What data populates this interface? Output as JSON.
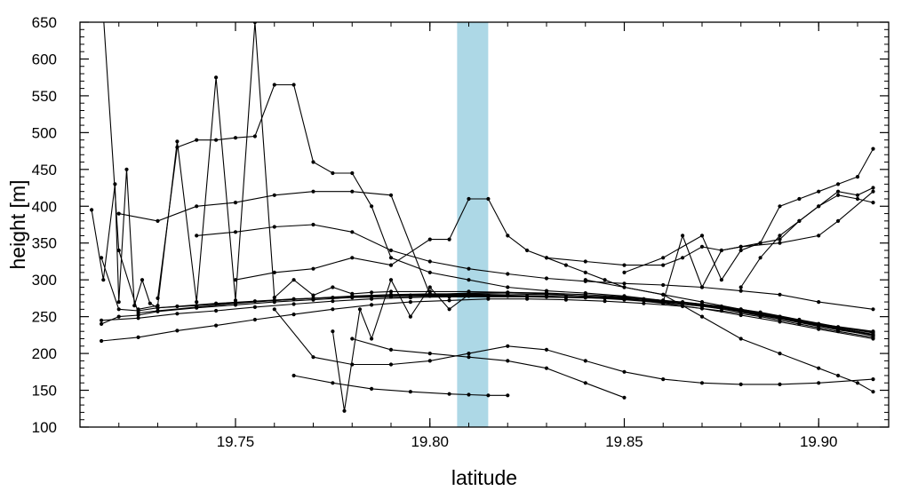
{
  "chart_data": {
    "type": "line",
    "title": "",
    "xlabel": "latitude",
    "ylabel": "height [m]",
    "xlim": [
      19.71,
      19.918
    ],
    "ylim": [
      100,
      650
    ],
    "x_ticks": [
      19.75,
      19.8,
      19.85,
      19.9
    ],
    "x_tick_labels": [
      "19.75",
      "19.80",
      "19.85",
      "19.90"
    ],
    "y_ticks": [
      100,
      150,
      200,
      250,
      300,
      350,
      400,
      450,
      500,
      550,
      600,
      650
    ],
    "y_tick_labels": [
      "100",
      "150",
      "200",
      "250",
      "300",
      "350",
      "400",
      "450",
      "500",
      "550",
      "600",
      "650"
    ],
    "grid": false,
    "legend": "none",
    "highlight_band": {
      "x_range": [
        19.807,
        19.815
      ],
      "color": "#add8e6"
    },
    "line_color": "#000000",
    "series": [
      {
        "x": [
          19.7155,
          19.725,
          19.735,
          19.745,
          19.755,
          19.765,
          19.775,
          19.785,
          19.795,
          19.805,
          19.815,
          19.825,
          19.835,
          19.845,
          19.855,
          19.865,
          19.875,
          19.885,
          19.895,
          19.905,
          19.914
        ],
        "y": [
          217,
          222,
          231,
          238,
          246,
          253,
          260,
          266,
          270,
          272,
          274,
          274,
          273,
          271,
          268,
          264,
          258,
          250,
          240,
          230,
          222
        ]
      },
      {
        "x": [
          19.7155,
          19.725,
          19.735,
          19.745,
          19.755,
          19.765,
          19.775,
          19.785,
          19.795,
          19.805,
          19.815,
          19.825,
          19.835,
          19.845,
          19.855,
          19.865,
          19.875,
          19.885,
          19.895,
          19.905,
          19.914
        ],
        "y": [
          245,
          248,
          254,
          258,
          263,
          267,
          271,
          274,
          276,
          277,
          277,
          277,
          276,
          275,
          272,
          268,
          262,
          253,
          243,
          232,
          225
        ]
      },
      {
        "x": [
          19.7155,
          19.72,
          19.725,
          19.73,
          19.735,
          19.745,
          19.755,
          19.765,
          19.775,
          19.785,
          19.795,
          19.805,
          19.815,
          19.825,
          19.835,
          19.845,
          19.855,
          19.865,
          19.875,
          19.885,
          19.895,
          19.905,
          19.914
        ],
        "y": [
          330,
          260,
          258,
          262,
          264,
          268,
          271,
          274,
          276,
          278,
          279,
          279,
          279,
          278,
          277,
          276,
          274,
          270,
          264,
          256,
          246,
          236,
          228
        ]
      },
      {
        "x": [
          19.7155,
          19.72,
          19.725,
          19.73,
          19.74,
          19.75,
          19.76,
          19.77,
          19.78,
          19.79,
          19.8,
          19.81,
          19.82,
          19.83,
          19.84,
          19.85,
          19.86,
          19.87,
          19.88,
          19.89,
          19.9,
          19.914
        ],
        "y": [
          240,
          250,
          252,
          257,
          262,
          266,
          270,
          273,
          276,
          277,
          278,
          278,
          278,
          277,
          276,
          274,
          271,
          266,
          259,
          250,
          240,
          226
        ]
      },
      {
        "x": [
          19.713,
          19.716,
          19.719,
          19.72,
          19.722,
          19.724,
          19.726,
          19.728,
          19.73,
          19.74,
          19.75,
          19.76,
          19.77,
          19.78,
          19.79,
          19.8,
          19.81,
          19.82,
          19.83,
          19.84,
          19.85,
          19.86,
          19.87,
          19.88,
          19.89,
          19.9,
          19.914
        ],
        "y": [
          395,
          300,
          430,
          270,
          450,
          265,
          300,
          268,
          262,
          265,
          269,
          272,
          275,
          278,
          280,
          281,
          281,
          281,
          280,
          278,
          276,
          272,
          267,
          260,
          250,
          240,
          229
        ]
      },
      {
        "x": [
          19.716,
          19.72,
          19.725,
          19.73,
          19.74,
          19.75,
          19.76,
          19.77,
          19.78,
          19.79,
          19.8,
          19.81,
          19.82,
          19.83,
          19.84,
          19.85,
          19.86,
          19.87,
          19.88,
          19.89,
          19.9,
          19.914
        ],
        "y": [
          660,
          340,
          255,
          258,
          263,
          268,
          272,
          275,
          277,
          279,
          280,
          280,
          279,
          278,
          276,
          273,
          269,
          264,
          257,
          248,
          238,
          224
        ]
      },
      {
        "x": [
          19.72,
          19.73,
          19.74,
          19.75,
          19.76,
          19.77,
          19.78,
          19.79,
          19.8,
          19.81,
          19.82,
          19.83,
          19.84,
          19.85,
          19.86,
          19.87,
          19.88,
          19.89,
          19.9,
          19.914
        ],
        "y": [
          390,
          380,
          400,
          405,
          415,
          420,
          420,
          415,
          280,
          282,
          283,
          282,
          280,
          277,
          272,
          266,
          258,
          249,
          239,
          225
        ]
      },
      {
        "x": [
          19.725,
          19.73,
          19.735,
          19.74,
          19.745,
          19.75,
          19.755,
          19.76,
          19.765,
          19.77,
          19.775,
          19.78,
          19.785,
          19.79,
          19.8,
          19.81,
          19.82,
          19.83,
          19.84,
          19.85,
          19.86,
          19.87,
          19.88,
          19.89,
          19.9,
          19.914
        ],
        "y": [
          260,
          265,
          488,
          270,
          575,
          272,
          650,
          276,
          300,
          279,
          290,
          281,
          283,
          284,
          284,
          284,
          283,
          281,
          278,
          274,
          268,
          261,
          252,
          243,
          233,
          220
        ]
      },
      {
        "x": [
          19.73,
          19.735,
          19.74,
          19.745,
          19.75,
          19.755,
          19.76,
          19.765,
          19.77,
          19.775,
          19.78,
          19.785,
          19.79,
          19.8,
          19.81,
          19.82,
          19.83,
          19.84,
          19.85,
          19.86,
          19.87,
          19.88,
          19.89,
          19.9,
          19.914
        ],
        "y": [
          275,
          480,
          490,
          490,
          493,
          495,
          565,
          565,
          460,
          445,
          445,
          400,
          330,
          310,
          300,
          290,
          285,
          282,
          278,
          272,
          265,
          256,
          247,
          237,
          225
        ]
      },
      {
        "x": [
          19.74,
          19.75,
          19.76,
          19.77,
          19.78,
          19.79,
          19.8,
          19.81,
          19.82,
          19.83,
          19.84,
          19.85,
          19.86,
          19.87,
          19.88,
          19.89,
          19.9,
          19.914
        ],
        "y": [
          360,
          365,
          372,
          375,
          365,
          340,
          325,
          315,
          308,
          302,
          298,
          295,
          293,
          290,
          285,
          280,
          270,
          260
        ]
      },
      {
        "x": [
          19.75,
          19.76,
          19.77,
          19.78,
          19.79,
          19.8,
          19.805,
          19.81,
          19.815,
          19.82,
          19.825,
          19.83,
          19.835,
          19.84,
          19.845,
          19.85,
          19.86,
          19.87,
          19.88,
          19.89,
          19.9,
          19.914
        ],
        "y": [
          300,
          310,
          315,
          330,
          320,
          355,
          355,
          410,
          410,
          360,
          340,
          330,
          320,
          310,
          300,
          290,
          280,
          270,
          260,
          250,
          240,
          230
        ]
      },
      {
        "x": [
          19.76,
          19.77,
          19.78,
          19.79,
          19.8,
          19.81,
          19.82,
          19.83,
          19.84,
          19.85,
          19.86,
          19.87,
          19.88,
          19.89,
          19.9,
          19.914
        ],
        "y": [
          260,
          195,
          185,
          185,
          190,
          200,
          210,
          205,
          190,
          175,
          165,
          160,
          158,
          158,
          160,
          165
        ]
      },
      {
        "x": [
          19.765,
          19.775,
          19.785,
          19.795,
          19.805,
          19.81,
          19.815,
          19.82
        ],
        "y": [
          170,
          160,
          152,
          148,
          145,
          144,
          143,
          143
        ]
      },
      {
        "x": [
          19.78,
          19.79,
          19.8,
          19.81,
          19.82,
          19.83,
          19.84,
          19.85
        ],
        "y": [
          220,
          205,
          200,
          195,
          190,
          180,
          160,
          140
        ]
      },
      {
        "x": [
          19.775,
          19.778,
          19.782,
          19.785,
          19.79,
          19.795,
          19.8,
          19.805,
          19.81
        ],
        "y": [
          230,
          122,
          260,
          220,
          300,
          250,
          290,
          260,
          280
        ]
      },
      {
        "x": [
          19.83,
          19.84,
          19.85,
          19.86,
          19.865,
          19.87,
          19.875,
          19.88,
          19.89,
          19.9,
          19.905,
          19.914
        ],
        "y": [
          330,
          325,
          320,
          320,
          330,
          345,
          340,
          345,
          350,
          360,
          380,
          420
        ]
      },
      {
        "x": [
          19.85,
          19.86,
          19.87,
          19.875,
          19.88,
          19.885,
          19.89,
          19.895,
          19.9,
          19.905,
          19.91,
          19.914
        ],
        "y": [
          310,
          330,
          360,
          300,
          340,
          350,
          400,
          410,
          420,
          430,
          440,
          478
        ]
      },
      {
        "x": [
          19.86,
          19.865,
          19.87,
          19.875,
          19.88,
          19.885,
          19.89,
          19.895,
          19.9,
          19.905,
          19.91,
          19.914
        ],
        "y": [
          270,
          360,
          290,
          340,
          345,
          350,
          355,
          380,
          400,
          420,
          415,
          425
        ]
      },
      {
        "x": [
          19.84,
          19.85,
          19.86,
          19.87,
          19.88,
          19.89,
          19.9,
          19.905,
          19.91,
          19.914
        ],
        "y": [
          300,
          290,
          280,
          250,
          220,
          200,
          180,
          170,
          160,
          148
        ]
      },
      {
        "x": [
          19.88,
          19.885,
          19.89,
          19.895,
          19.9,
          19.905,
          19.91,
          19.914
        ],
        "y": [
          290,
          330,
          360,
          380,
          400,
          415,
          410,
          405
        ]
      }
    ]
  }
}
